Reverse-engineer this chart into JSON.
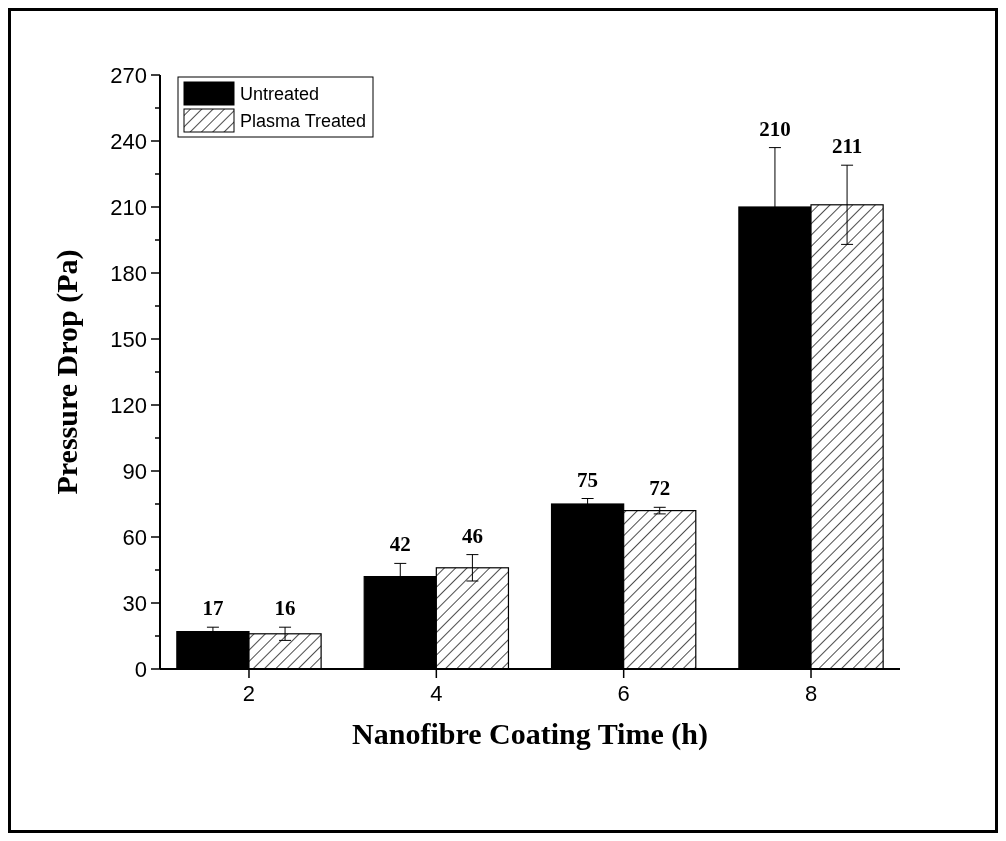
{
  "chart_data": {
    "type": "bar",
    "xlabel": "Nanofibre Coating Time (h)",
    "ylabel": "Pressure Drop (Pa)",
    "categories": [
      "2",
      "4",
      "6",
      "8"
    ],
    "series": [
      {
        "name": "Untreated",
        "color": "#000000",
        "values": [
          17,
          42,
          75,
          210
        ],
        "errors": [
          2,
          6,
          2.5,
          27
        ]
      },
      {
        "name": "Plasma Treated",
        "color": "#000000",
        "values": [
          16,
          46,
          72,
          211
        ],
        "errors": [
          3,
          6,
          1.5,
          18
        ]
      }
    ],
    "ylim": [
      0,
      270
    ],
    "yticks": [
      0,
      {
        "value": 15,
        "label": null
      },
      30,
      {
        "value": 45,
        "label": null
      },
      60,
      {
        "value": 75,
        "label": null
      },
      90,
      {
        "value": 105,
        "label": null
      },
      120,
      {
        "value": 135,
        "label": null
      },
      150,
      {
        "value": 165,
        "label": null
      },
      180,
      {
        "value": 195,
        "label": null
      },
      210,
      {
        "value": 225,
        "label": null
      },
      240,
      {
        "value": 255,
        "label": null
      },
      270
    ],
    "data_labels": true,
    "legend": "top left",
    "grid": false
  }
}
